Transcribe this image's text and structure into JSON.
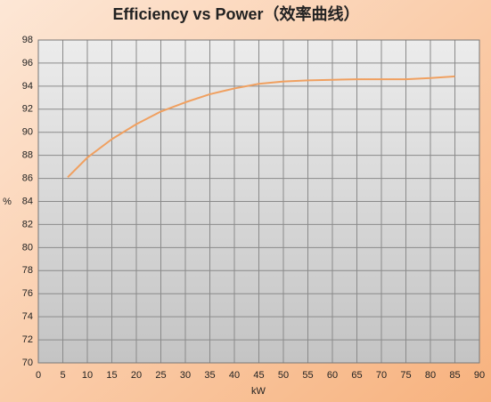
{
  "chart_data": {
    "type": "line",
    "title": "Efficiency vs Power（效率曲线）",
    "x_label": "kW",
    "y_label": "%",
    "series": [
      {
        "name": "Efficiency",
        "color": "#f0a060",
        "x": [
          6,
          10,
          15,
          20,
          25,
          30,
          35,
          40,
          45,
          50,
          55,
          60,
          65,
          70,
          75,
          80,
          85
        ],
        "values": [
          86.1,
          87.8,
          89.4,
          90.7,
          91.8,
          92.6,
          93.3,
          93.8,
          94.2,
          94.4,
          94.5,
          94.55,
          94.6,
          94.6,
          94.6,
          94.7,
          94.85
        ]
      }
    ],
    "xlim": [
      0,
      90
    ],
    "xticks": [
      0,
      5,
      10,
      15,
      20,
      25,
      30,
      35,
      40,
      45,
      50,
      55,
      60,
      65,
      70,
      75,
      80,
      85,
      90
    ],
    "ylim": [
      70,
      98
    ],
    "yticks": [
      70,
      72,
      74,
      76,
      78,
      80,
      82,
      84,
      86,
      88,
      90,
      92,
      94,
      96,
      98
    ],
    "grid": true
  }
}
